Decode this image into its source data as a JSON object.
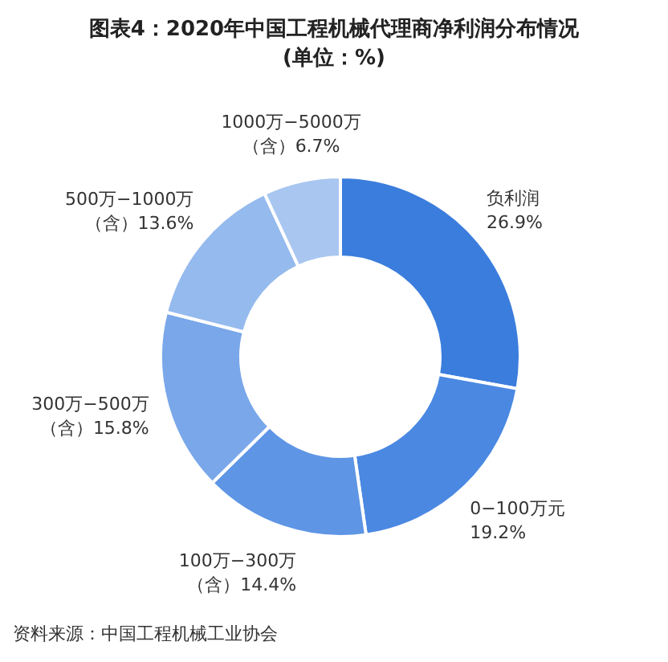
{
  "chart_data": {
    "type": "donut",
    "title": "图表4：2020年中国工程机械代理商净利润分布情况",
    "subtitle": "(单位：%)",
    "categories": [
      "负利润",
      "0−100万元",
      "100万−300万（含）",
      "300万−500万（含）",
      "500万−1000万（含）",
      "1000万−5000万（含）"
    ],
    "values": [
      26.9,
      19.2,
      14.4,
      15.8,
      13.6,
      6.7
    ],
    "colors": [
      "#3b7ddd",
      "#4a88e2",
      "#5e95e5",
      "#79a7ea",
      "#95baee",
      "#a8c6f0"
    ],
    "value_labels": [
      "26.9%",
      "19.2%",
      "14.4%",
      "15.8%",
      "13.6%",
      "6.7%"
    ],
    "annotations": [
      "资料来源：中国工程机械工业协会"
    ]
  }
}
